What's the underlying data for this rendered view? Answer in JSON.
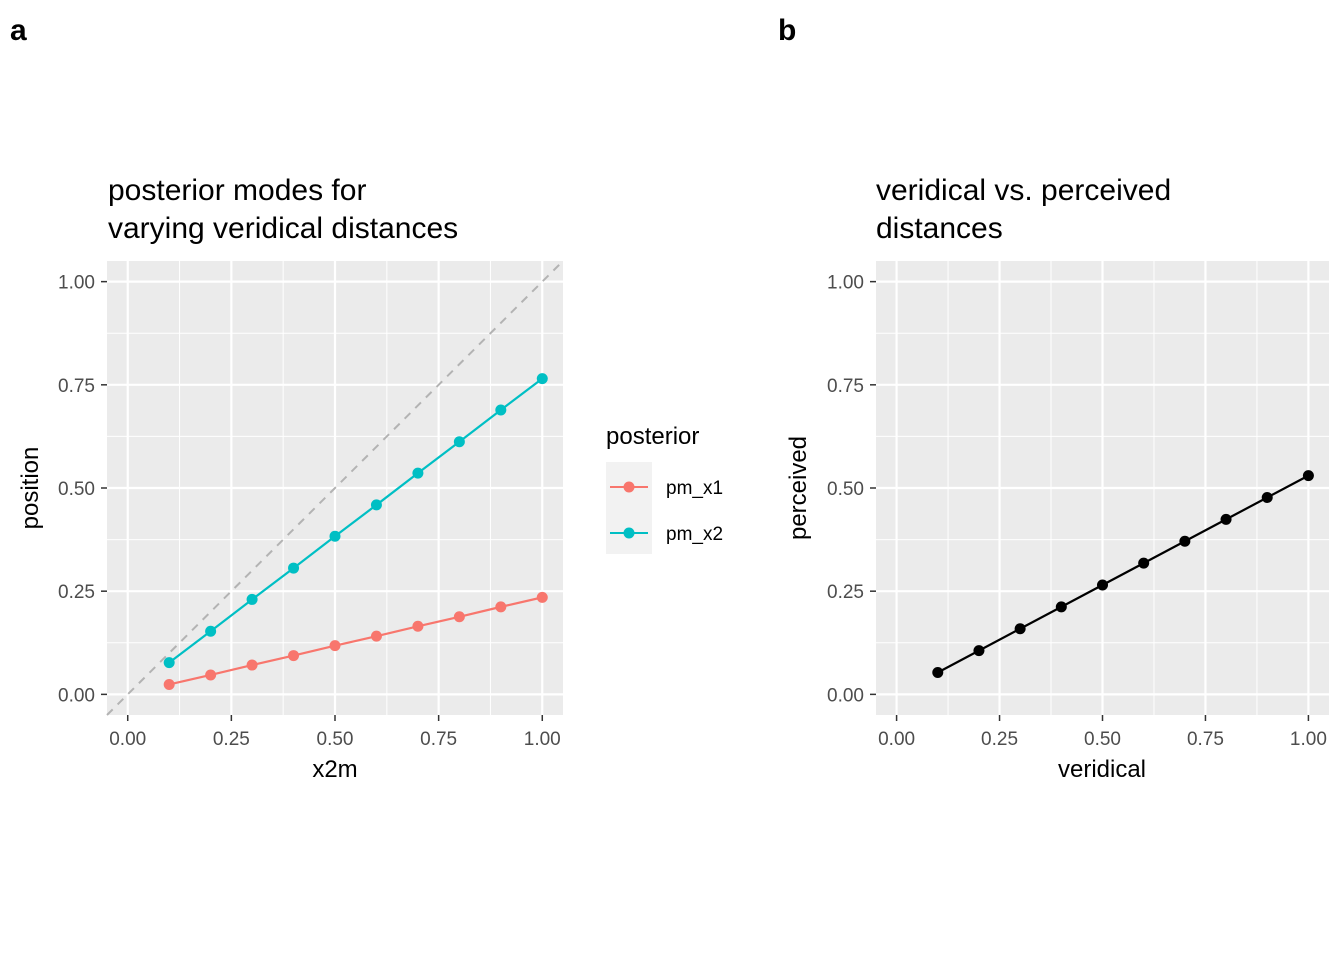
{
  "panels": [
    {
      "letter": "a"
    },
    {
      "letter": "b"
    }
  ],
  "chart_data": [
    {
      "type": "line",
      "title": [
        "posterior modes for",
        "varying veridical distances"
      ],
      "xlabel": "x2m",
      "ylabel": "position",
      "xlim": [
        -0.05,
        1.05
      ],
      "ylim": [
        -0.05,
        1.05
      ],
      "xticks": [
        "0.00",
        "0.25",
        "0.50",
        "0.75",
        "1.00"
      ],
      "yticks": [
        "0.00",
        "0.25",
        "0.50",
        "0.75",
        "1.00"
      ],
      "grid": true,
      "reference_line": {
        "type": "identity",
        "style": "dashed",
        "color": "#b3b3b3"
      },
      "legend": {
        "title": "posterior",
        "position": "right"
      },
      "x": [
        0.1,
        0.2,
        0.3,
        0.4,
        0.5,
        0.6,
        0.7,
        0.8,
        0.9,
        1.0
      ],
      "series": [
        {
          "name": "pm_x1",
          "color": "#F8766D",
          "values": [
            0.024,
            0.047,
            0.071,
            0.094,
            0.118,
            0.141,
            0.165,
            0.188,
            0.212,
            0.235
          ]
        },
        {
          "name": "pm_x2",
          "color": "#00BFC4",
          "values": [
            0.077,
            0.153,
            0.23,
            0.306,
            0.383,
            0.459,
            0.536,
            0.612,
            0.689,
            0.765
          ]
        }
      ]
    },
    {
      "type": "line",
      "title": [
        "veridical vs. perceived",
        "distances"
      ],
      "xlabel": "veridical",
      "ylabel": "perceived",
      "xlim": [
        -0.05,
        1.05
      ],
      "ylim": [
        -0.05,
        1.05
      ],
      "xticks": [
        "0.00",
        "0.25",
        "0.50",
        "0.75",
        "1.00"
      ],
      "yticks": [
        "0.00",
        "0.25",
        "0.50",
        "0.75",
        "1.00"
      ],
      "grid": true,
      "x": [
        0.1,
        0.2,
        0.3,
        0.4,
        0.5,
        0.6,
        0.7,
        0.8,
        0.9,
        1.0
      ],
      "series": [
        {
          "color": "#000000",
          "values": [
            0.053,
            0.106,
            0.159,
            0.212,
            0.265,
            0.318,
            0.371,
            0.424,
            0.477,
            0.53
          ]
        }
      ]
    }
  ]
}
